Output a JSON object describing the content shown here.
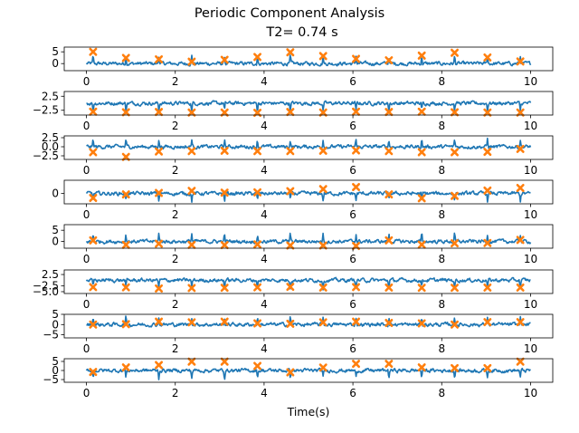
{
  "figure": {
    "title": "Periodic Component Analysis",
    "subtitle": "T2= 0.74 s"
  },
  "chart_data": {
    "type": "line",
    "title": "Periodic Component Analysis",
    "subtitle": "T2= 0.74 s",
    "xlabel": "Time(s)",
    "xlim": [
      -0.5,
      10.5
    ],
    "xticks": [
      0,
      2,
      4,
      6,
      8,
      10
    ],
    "period_s": 0.74,
    "n_subplots": 8,
    "colors": {
      "signal": "#1f77b4",
      "markers": "#ff7f0e"
    },
    "marker_times": [
      0.15,
      0.89,
      1.63,
      2.37,
      3.11,
      3.85,
      4.59,
      5.33,
      6.07,
      6.81,
      7.55,
      8.29,
      9.03,
      9.77
    ],
    "series": [
      {
        "ylim": [
          -3,
          7
        ],
        "yticks": [
          0,
          5
        ],
        "ytick_labels": [
          "0",
          "5"
        ],
        "marker_values": [
          5.0,
          2.4,
          1.8,
          0.8,
          1.6,
          2.8,
          4.8,
          3.2,
          2.0,
          1.4,
          3.4,
          4.6,
          2.6,
          0.9
        ]
      },
      {
        "ylim": [
          -4.2,
          4.2
        ],
        "yticks": [
          -2.5,
          2.5
        ],
        "ytick_labels": [
          "−2.5",
          "2.5"
        ],
        "marker_values": [
          -3.0,
          -3.2,
          -3.1,
          -3.3,
          -3.3,
          -3.4,
          -3.1,
          -3.3,
          -3.0,
          -3.1,
          -3.0,
          -3.2,
          -3.3,
          -3.3
        ]
      },
      {
        "ylim": [
          -3.5,
          3.0
        ],
        "yticks": [
          -2.5,
          0.0,
          2.5
        ],
        "ytick_labels": [
          "−2.5",
          "0.0",
          "2.5"
        ],
        "marker_values": [
          -1.5,
          -2.8,
          -1.3,
          -1.2,
          -1.1,
          -1.2,
          -1.2,
          -1.1,
          -1.0,
          -1.2,
          -1.5,
          -1.5,
          -1.4,
          -0.6
        ]
      },
      {
        "ylim": [
          -3.5,
          4.5
        ],
        "yticks": [
          0
        ],
        "ytick_labels": [
          "0"
        ],
        "marker_values": [
          -1.5,
          -0.3,
          0.2,
          0.9,
          0.3,
          0.4,
          0.8,
          1.5,
          2.2,
          -0.3,
          -1.6,
          -0.8,
          1.0,
          1.9
        ]
      },
      {
        "ylim": [
          -3,
          7.5
        ],
        "yticks": [
          0,
          5
        ],
        "ytick_labels": [
          "0",
          "5"
        ],
        "marker_values": [
          0.5,
          -1.5,
          -1.0,
          -1.5,
          -1.6,
          -1.3,
          -1.8,
          -1.8,
          -2.0,
          0.5,
          -1.4,
          -0.8,
          -0.7,
          0.7
        ]
      },
      {
        "ylim": [
          -5.8,
          4.5
        ],
        "yticks": [
          -5.0,
          -2.5,
          2.5
        ],
        "ytick_labels": [
          "−5.0",
          "−2.5",
          "2.5"
        ],
        "marker_values": [
          -3.0,
          -3.1,
          -3.6,
          -3.4,
          -3.3,
          -3.1,
          -2.9,
          -3.2,
          -3.0,
          -3.2,
          -3.3,
          -3.3,
          -3.2,
          -3.2
        ]
      },
      {
        "ylim": [
          -6.5,
          5
        ],
        "yticks": [
          -5,
          0,
          5
        ],
        "ytick_labels": [
          "−5",
          "0",
          "5"
        ],
        "marker_values": [
          0.0,
          0.2,
          1.4,
          1.1,
          1.4,
          0.6,
          0.4,
          1.1,
          1.4,
          0.8,
          0.6,
          0.0,
          1.2,
          1.2
        ]
      },
      {
        "ylim": [
          -6.5,
          6.5
        ],
        "yticks": [
          -5,
          0,
          5
        ],
        "ytick_labels": [
          "−5",
          "0",
          "5"
        ],
        "marker_values": [
          -0.8,
          1.7,
          3.0,
          4.9,
          4.9,
          2.5,
          -1.0,
          1.6,
          3.7,
          3.7,
          1.7,
          1.3,
          1.3,
          4.9
        ]
      }
    ]
  }
}
